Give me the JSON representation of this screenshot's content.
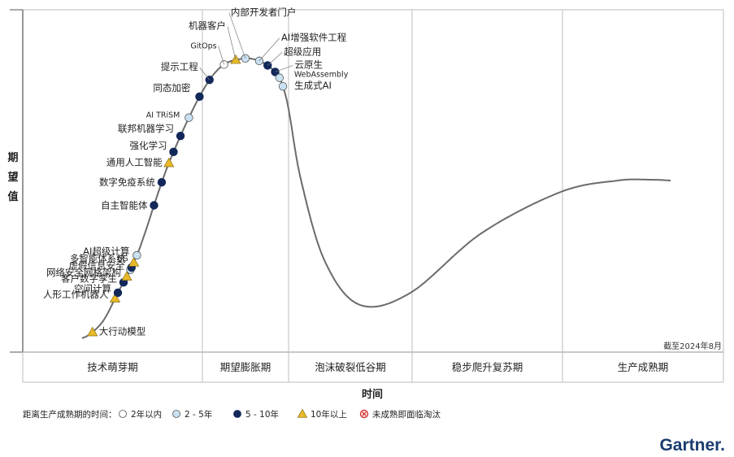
{
  "chart_data": {
    "type": "hype-cycle",
    "ylabel": "期望值",
    "xlabel": "时间",
    "date_note": "截至2024年8月",
    "phases": [
      "技术萌芽期",
      "期望膨胀期",
      "泡沫破裂低谷期",
      "稳步爬升复苏期",
      "生产成熟期"
    ],
    "legend": {
      "title": "距离生产成熟期的时间：",
      "items": [
        {
          "key": "lt2",
          "label": "2年以内"
        },
        {
          "key": "2to5",
          "label": "2 - 5年"
        },
        {
          "key": "5to10",
          "label": "5 - 10年"
        },
        {
          "key": "gt10",
          "label": "10年以上"
        },
        {
          "key": "obsolete",
          "label": "未成熟即面临淘汰"
        }
      ]
    },
    "colors": {
      "curve": "#6b6b6b",
      "lt2": "#ffffff",
      "2to5": "#c9e1f2",
      "5to10": "#12285a",
      "gt10": "#e8b92a",
      "obsolete": "#d32f2f",
      "logo": "#1a3c6e"
    },
    "technologies": [
      {
        "name": "大行动模型",
        "t": 0.045,
        "cat": "gt10"
      },
      {
        "name": "人形工作机器人",
        "t": 0.113,
        "cat": "gt10"
      },
      {
        "name": "空间计算",
        "t": 0.12,
        "cat": "5to10"
      },
      {
        "name": "客户数字孪生",
        "t": 0.133,
        "cat": "5to10"
      },
      {
        "name": "网络安全网格架构",
        "t": 0.14,
        "cat": "gt10"
      },
      {
        "name": "虚假信息安全",
        "t": 0.147,
        "cat": "2to5"
      },
      {
        "name": "多智能体系统",
        "t": 0.149,
        "cat": "5to10"
      },
      {
        "name": "6G",
        "t": 0.153,
        "cat": "gt10"
      },
      {
        "name": "AI超级计算",
        "t": 0.158,
        "cat": "2to5"
      },
      {
        "name": "自主智能体",
        "t": 0.181,
        "cat": "5to10"
      },
      {
        "name": "数字免疫系统",
        "t": 0.19,
        "cat": "5to10"
      },
      {
        "name": "通用人工智能",
        "t": 0.198,
        "cat": "gt10"
      },
      {
        "name": "强化学习",
        "t": 0.203,
        "cat": "5to10"
      },
      {
        "name": "联邦机器学习",
        "t": 0.21,
        "cat": "5to10"
      },
      {
        "name": "AI TRiSM",
        "t": 0.218,
        "cat": "2to5"
      },
      {
        "name": "同态加密",
        "t": 0.228,
        "cat": "5to10"
      },
      {
        "name": "提示工程",
        "t": 0.238,
        "cat": "5to10"
      },
      {
        "name": "GitOps",
        "t": 0.251,
        "cat": "lt2"
      },
      {
        "name": "机器客户",
        "t": 0.262,
        "cat": "gt10"
      },
      {
        "name": "内部开发者门户",
        "t": 0.272,
        "cat": "2to5"
      },
      {
        "name": "AI增强软件工程",
        "t": 0.29,
        "cat": "2to5"
      },
      {
        "name": "超级应用",
        "t": 0.302,
        "cat": "5to10"
      },
      {
        "name": "云原生",
        "t": 0.313,
        "cat": "5to10"
      },
      {
        "name": "WebAssembly",
        "t": 0.319,
        "cat": "2to5"
      },
      {
        "name": "生成式AI",
        "t": 0.325,
        "cat": "2to5"
      }
    ]
  },
  "brand": {
    "name": "Gartner."
  }
}
